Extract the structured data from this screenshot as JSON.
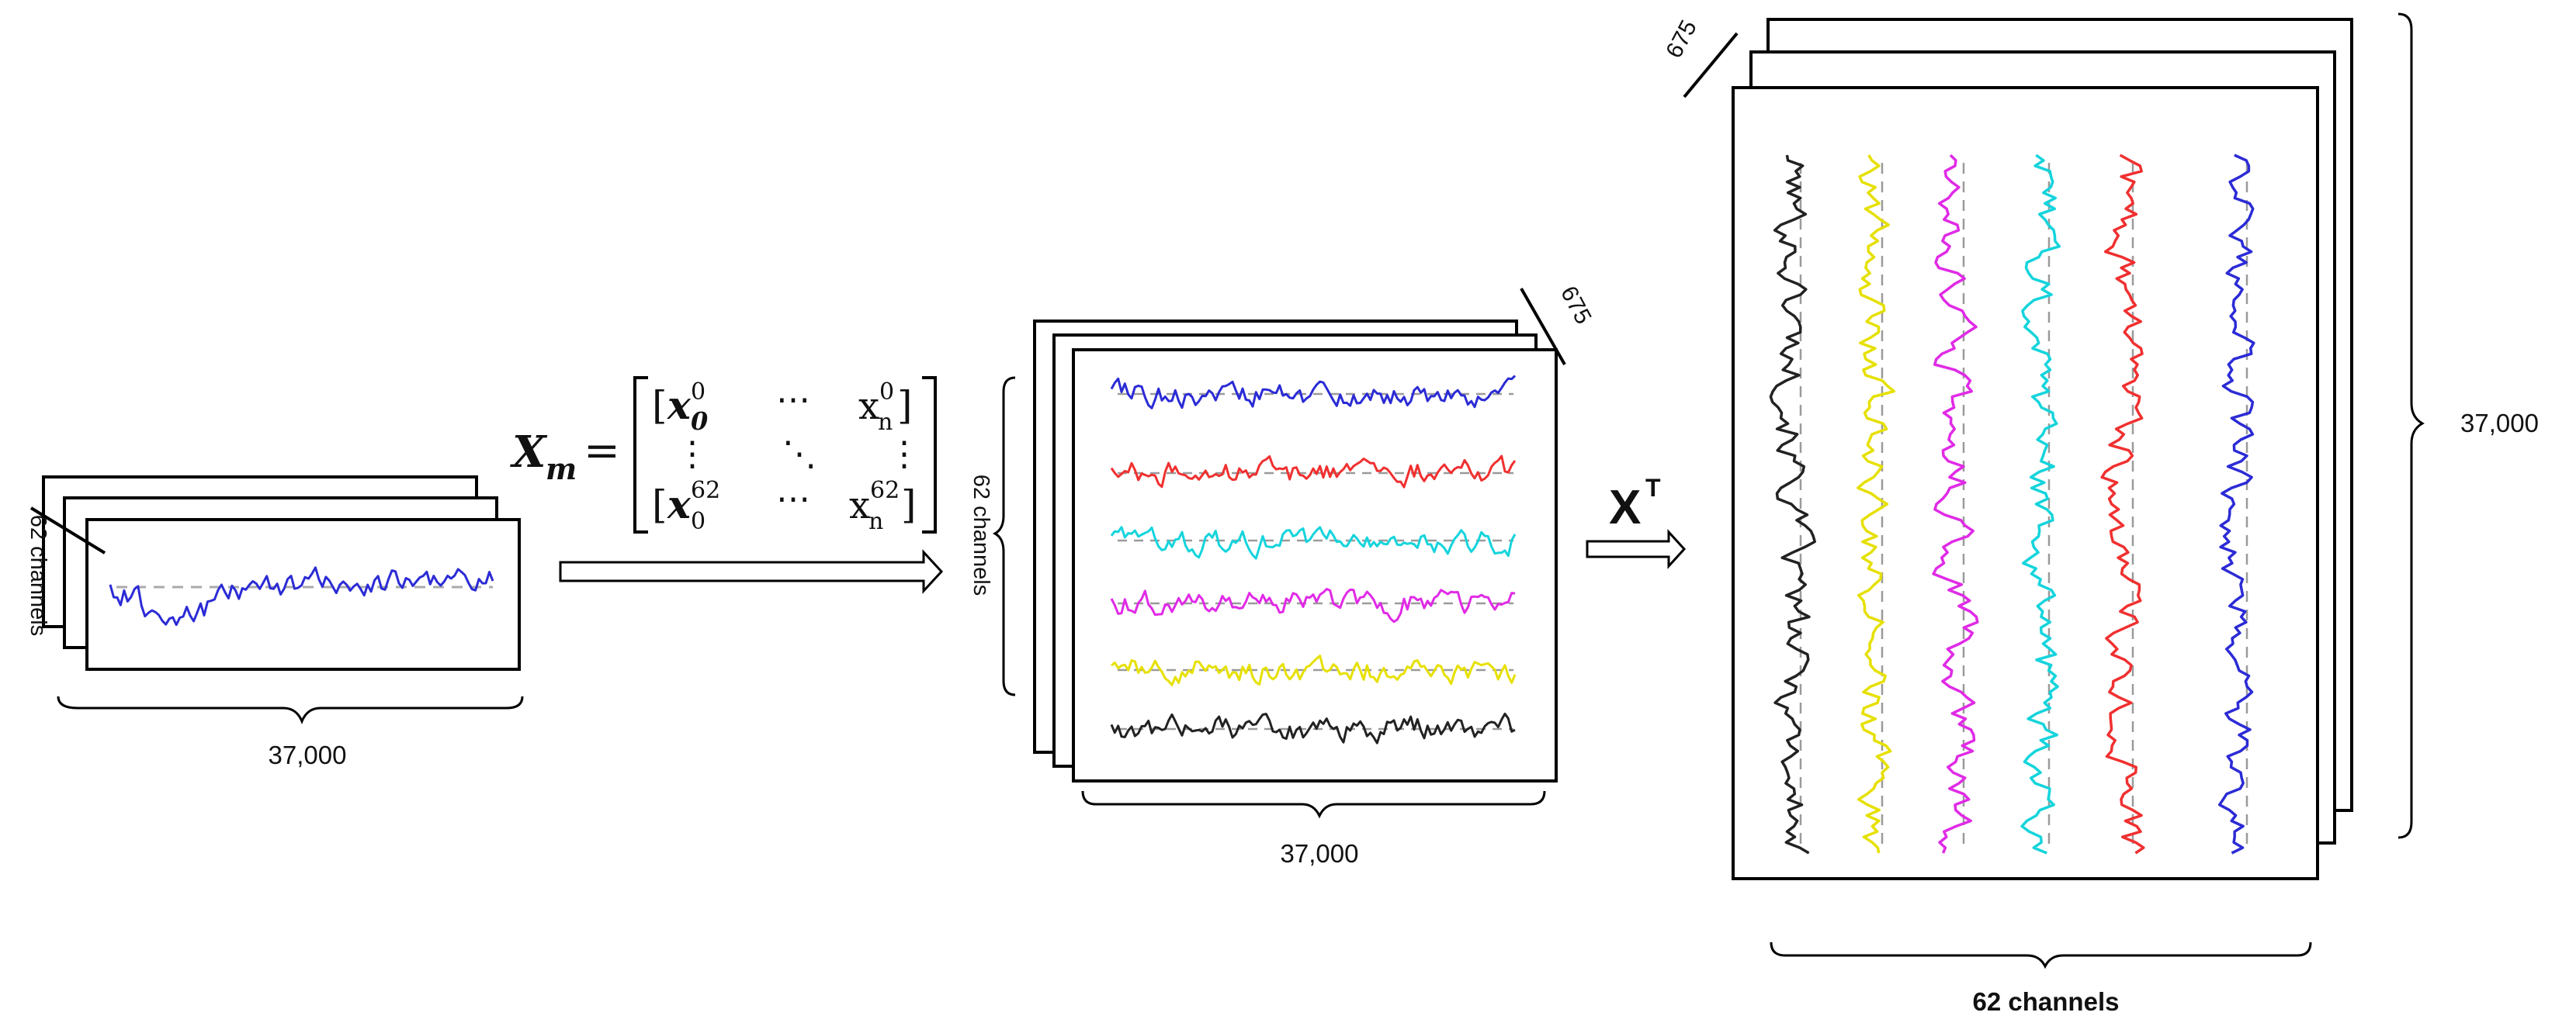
{
  "panel1": {
    "channels_label": "62 channels",
    "length_label": "37,000"
  },
  "equation": {
    "lhs": "X",
    "lhs_subscript": "m",
    "equals": "=",
    "r0c0_base": "x",
    "r0c0_sub": "0",
    "r0c0_sup": "0",
    "r0c1": "⋯",
    "r0c2_base": "x",
    "r0c2_sub": "n",
    "r0c2_sup": "0",
    "r1c0": "⋮",
    "r1c1": "⋱",
    "r1c2": "⋮",
    "r2c0_base": "x",
    "r2c0_sub": "0",
    "r2c0_sup": "62",
    "r2c1": "⋯",
    "r2c2_base": "x",
    "r2c2_sub": "n",
    "r2c2_sup": "62"
  },
  "panel2": {
    "depth_label": "675",
    "channels_label": "62 channels",
    "length_label": "37,000"
  },
  "transpose": {
    "base": "X",
    "sup": "T"
  },
  "panel3": {
    "depth_label": "675",
    "height_label": "37,000",
    "channels_label": "62 channels"
  },
  "colors": {
    "blue": "#2b2bd6",
    "red": "#f03030",
    "cyan": "#14d4dc",
    "magenta": "#e02ae6",
    "yellow": "#e6e000",
    "black": "#222222",
    "baseline": "#9a9a9a"
  },
  "signal_order_panel2": [
    "blue",
    "red",
    "cyan",
    "magenta",
    "yellow",
    "black"
  ],
  "signal_order_panel3": [
    "black",
    "yellow",
    "magenta",
    "cyan",
    "red",
    "blue"
  ]
}
